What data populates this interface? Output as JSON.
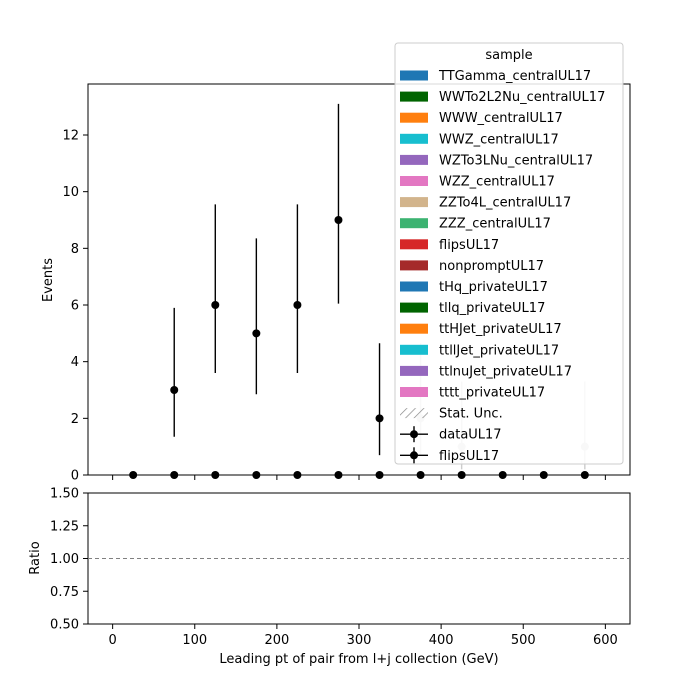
{
  "chart_data": [
    {
      "type": "scatter",
      "panel": "main",
      "xlabel": "",
      "ylabel": "Events",
      "xlim": [
        -30,
        630
      ],
      "ylim": [
        0,
        13.8
      ],
      "yticks": [
        0,
        2,
        4,
        6,
        8,
        10,
        12
      ],
      "xticks": [
        0,
        100,
        200,
        300,
        400,
        500,
        600
      ],
      "grid": false,
      "legend": {
        "title": "sample",
        "placement": "upper-right",
        "entries": [
          {
            "label": "TTGamma_centralUL17",
            "kind": "patch",
            "color": "#1f77b4"
          },
          {
            "label": "WWTo2L2Nu_centralUL17",
            "kind": "patch",
            "color": "#006400"
          },
          {
            "label": "WWW_centralUL17",
            "kind": "patch",
            "color": "#ff7f0e"
          },
          {
            "label": "WWZ_centralUL17",
            "kind": "patch",
            "color": "#17becf"
          },
          {
            "label": "WZTo3LNu_centralUL17",
            "kind": "patch",
            "color": "#9467bd"
          },
          {
            "label": "WZZ_centralUL17",
            "kind": "patch",
            "color": "#e377c2"
          },
          {
            "label": "ZZTo4L_centralUL17",
            "kind": "patch",
            "color": "#d2b48c"
          },
          {
            "label": "ZZZ_centralUL17",
            "kind": "patch",
            "color": "#3cb371"
          },
          {
            "label": "flipsUL17",
            "kind": "patch",
            "color": "#d62728"
          },
          {
            "label": "nonpromptUL17",
            "kind": "patch",
            "color": "#a52a2a"
          },
          {
            "label": "tHq_privateUL17",
            "kind": "patch",
            "color": "#1f77b4"
          },
          {
            "label": "tllq_privateUL17",
            "kind": "patch",
            "color": "#006400"
          },
          {
            "label": "ttHJet_privateUL17",
            "kind": "patch",
            "color": "#ff7f0e"
          },
          {
            "label": "ttllJet_privateUL17",
            "kind": "patch",
            "color": "#17becf"
          },
          {
            "label": "ttlnuJet_privateUL17",
            "kind": "patch",
            "color": "#9467bd"
          },
          {
            "label": "tttt_privateUL17",
            "kind": "patch",
            "color": "#e377c2"
          },
          {
            "label": "Stat. Unc.",
            "kind": "hatch",
            "color": "#888888"
          },
          {
            "label": "dataUL17",
            "kind": "errorbar",
            "color": "#000000"
          },
          {
            "label": "flipsUL17",
            "kind": "errorbar",
            "color": "#000000"
          }
        ]
      },
      "series": [
        {
          "name": "dataUL17",
          "color": "#000000",
          "points": [
            {
              "x": 75,
              "y": 3,
              "ylo": 1.35,
              "yhi": 5.9
            },
            {
              "x": 125,
              "y": 6,
              "ylo": 3.6,
              "yhi": 9.55
            },
            {
              "x": 175,
              "y": 5,
              "ylo": 2.85,
              "yhi": 8.35
            },
            {
              "x": 225,
              "y": 6,
              "ylo": 3.6,
              "yhi": 9.55
            },
            {
              "x": 275,
              "y": 9,
              "ylo": 6.05,
              "yhi": 13.1
            },
            {
              "x": 325,
              "y": 2,
              "ylo": 0.7,
              "yhi": 4.65
            }
          ]
        },
        {
          "name": "dataUL17 (faded)",
          "color": "#cccccc",
          "points": [
            {
              "x": 375,
              "y": 2,
              "ylo": 0.7,
              "yhi": 4.65
            },
            {
              "x": 425,
              "y": 1,
              "ylo": 0.2,
              "yhi": 3.3
            },
            {
              "x": 575,
              "y": 1,
              "ylo": 0.2,
              "yhi": 3.3
            }
          ]
        },
        {
          "name": "flipsUL17",
          "color": "#000000",
          "points": [
            {
              "x": 25,
              "y": 0
            },
            {
              "x": 75,
              "y": 0
            },
            {
              "x": 125,
              "y": 0
            },
            {
              "x": 175,
              "y": 0
            },
            {
              "x": 225,
              "y": 0
            },
            {
              "x": 275,
              "y": 0
            },
            {
              "x": 325,
              "y": 0
            },
            {
              "x": 375,
              "y": 0
            },
            {
              "x": 425,
              "y": 0
            },
            {
              "x": 475,
              "y": 0
            },
            {
              "x": 525,
              "y": 0
            },
            {
              "x": 575,
              "y": 0
            }
          ]
        }
      ]
    },
    {
      "type": "line",
      "panel": "ratio",
      "xlabel": "Leading pt of pair from l+j collection (GeV)",
      "ylabel": "Ratio",
      "xlim": [
        -30,
        630
      ],
      "ylim": [
        0.5,
        1.5
      ],
      "yticks": [
        "0.50",
        "0.75",
        "1.00",
        "1.25",
        "1.50"
      ],
      "xticks": [
        0,
        100,
        200,
        300,
        400,
        500,
        600
      ],
      "reference_line": {
        "y": 1.0,
        "style": "dashed",
        "color": "#808080"
      }
    }
  ]
}
